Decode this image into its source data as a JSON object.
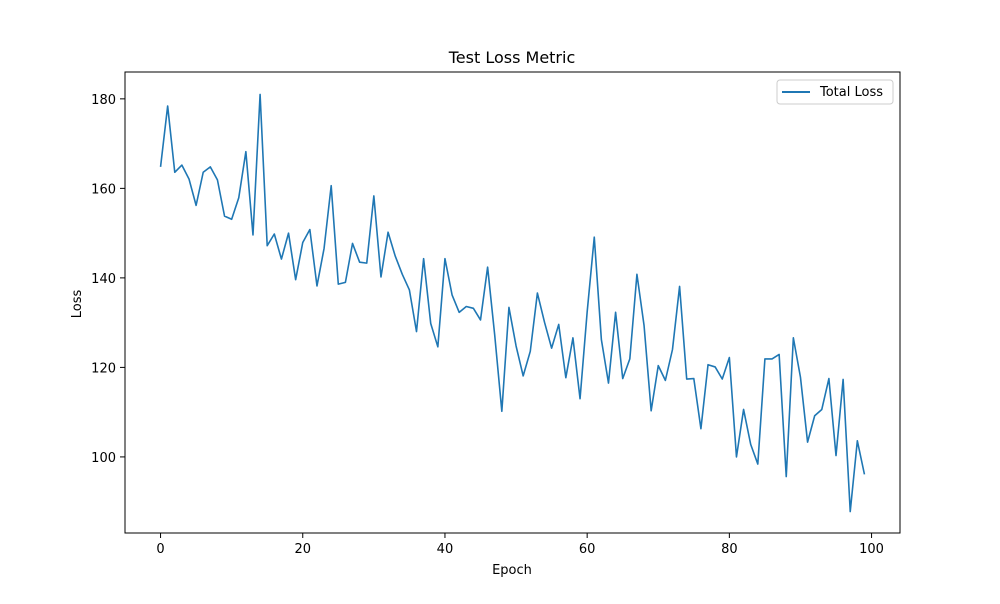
{
  "chart_data": {
    "type": "line",
    "title": "Test Loss Metric",
    "xlabel": "Epoch",
    "ylabel": "Loss",
    "xlim": [
      -5,
      104
    ],
    "ylim": [
      83,
      186
    ],
    "xticks": [
      0,
      20,
      40,
      60,
      80,
      100
    ],
    "yticks": [
      100,
      120,
      140,
      160,
      180
    ],
    "grid": false,
    "legend_position": "top-right",
    "colors": {
      "series": "#1f77b4",
      "axes": "#000000",
      "legend_border": "#cccccc"
    },
    "series": [
      {
        "name": "Total Loss",
        "x": [
          0,
          1,
          2,
          3,
          4,
          5,
          6,
          7,
          8,
          9,
          10,
          11,
          12,
          13,
          14,
          15,
          16,
          17,
          18,
          19,
          20,
          21,
          22,
          23,
          24,
          25,
          26,
          27,
          28,
          29,
          30,
          31,
          32,
          33,
          34,
          35,
          36,
          37,
          38,
          39,
          40,
          41,
          42,
          43,
          44,
          45,
          46,
          47,
          48,
          49,
          50,
          51,
          52,
          53,
          54,
          55,
          56,
          57,
          58,
          59,
          60,
          61,
          62,
          63,
          64,
          65,
          66,
          67,
          68,
          69,
          70,
          71,
          72,
          73,
          74,
          75,
          76,
          77,
          78,
          79,
          80,
          81,
          82,
          83,
          84,
          85,
          86,
          87,
          88,
          89,
          90,
          91,
          92,
          93,
          94,
          95,
          96,
          97,
          98,
          99
        ],
        "values": [
          164.8,
          178.4,
          163.6,
          165.2,
          162.1,
          156.2,
          163.6,
          164.8,
          161.9,
          153.8,
          153.1,
          157.9,
          168.2,
          149.6,
          181.0,
          147.2,
          149.8,
          144.2,
          150.0,
          139.6,
          147.9,
          150.8,
          138.2,
          146.6,
          160.6,
          138.6,
          139.0,
          147.7,
          143.5,
          143.3,
          158.3,
          140.2,
          150.2,
          144.9,
          140.8,
          137.3,
          128.0,
          144.3,
          129.8,
          124.6,
          144.3,
          136.2,
          132.3,
          133.6,
          133.2,
          130.6,
          142.4,
          127.2,
          110.2,
          133.4,
          124.8,
          118.1,
          123.6,
          136.6,
          130.1,
          124.3,
          129.6,
          117.7,
          126.6,
          113.0,
          132.4,
          149.1,
          126.2,
          116.5,
          132.3,
          117.5,
          121.9,
          140.8,
          129.4,
          110.3,
          120.4,
          117.1,
          124.0,
          138.1,
          117.4,
          117.5,
          106.3,
          120.6,
          120.1,
          117.4,
          122.2,
          100.0,
          110.6,
          102.8,
          98.4,
          121.9,
          121.9,
          122.9,
          95.6,
          126.6,
          117.8,
          103.3,
          109.2,
          110.6,
          117.5,
          100.3,
          117.3,
          87.8,
          103.6,
          96.1
        ]
      }
    ]
  }
}
